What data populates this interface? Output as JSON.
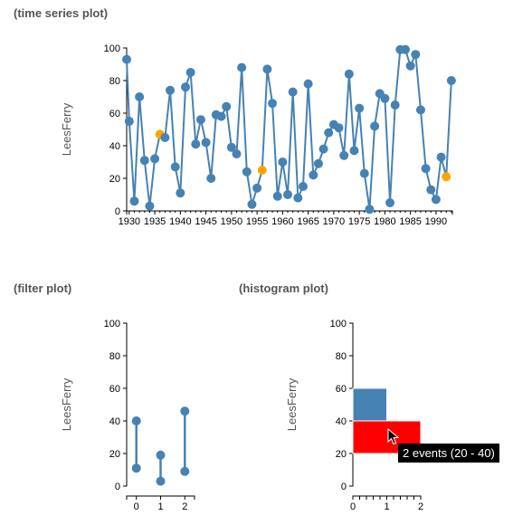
{
  "headings": {
    "time_series": "(time series plot)",
    "filter": "(filter plot)",
    "histogram": "(histogram plot)"
  },
  "tooltip": "2 events (20 - 40)",
  "colors": {
    "point": "#4682b4",
    "highlight": "#ffa500",
    "selected": "#ff0000"
  },
  "chart_data": [
    {
      "type": "line",
      "ylabel": "LeesFerry",
      "xlabel": "",
      "xlim": [
        1929.5,
        1993.2
      ],
      "ylim": [
        0,
        100
      ],
      "x_ticks": [
        1930,
        1935,
        1940,
        1945,
        1950,
        1955,
        1960,
        1965,
        1970,
        1975,
        1980,
        1985,
        1990
      ],
      "y_ticks": [
        0,
        20,
        40,
        60,
        80,
        100
      ],
      "x": [
        1929.5,
        1930,
        1931,
        1932,
        1933,
        1934,
        1935,
        1936,
        1937,
        1938,
        1939,
        1940,
        1941,
        1942,
        1943,
        1944,
        1945,
        1946,
        1947,
        1948,
        1949,
        1950,
        1951,
        1952,
        1953,
        1954,
        1955,
        1956,
        1957,
        1958,
        1959,
        1960,
        1961,
        1962,
        1963,
        1964,
        1965,
        1966,
        1967,
        1968,
        1969,
        1970,
        1971,
        1972,
        1973,
        1974,
        1975,
        1976,
        1977,
        1978,
        1979,
        1980,
        1981,
        1982,
        1983,
        1984,
        1985,
        1986,
        1987,
        1988,
        1989,
        1990,
        1991,
        1992,
        1993
      ],
      "y": [
        93,
        55,
        6,
        70,
        31,
        3,
        32,
        47,
        45,
        74,
        27,
        11,
        76,
        85,
        41,
        56,
        42,
        20,
        59,
        58,
        64,
        39,
        35,
        88,
        24,
        4,
        14,
        25,
        87,
        66,
        9,
        30,
        10,
        73,
        8,
        15,
        78,
        22,
        29,
        38,
        48,
        53,
        51,
        34,
        84,
        37,
        63,
        23,
        1,
        52,
        72,
        69,
        5,
        65,
        99,
        99,
        89,
        96,
        62,
        26,
        13,
        7,
        33,
        21,
        80
      ],
      "highlighted_x": [
        1936,
        1956,
        1992
      ]
    },
    {
      "type": "range",
      "ylabel": "LeesFerry",
      "xlabel": "",
      "xlim": [
        -0.4,
        2.4
      ],
      "ylim": [
        0,
        100
      ],
      "x_ticks": [
        0,
        1,
        2
      ],
      "y_ticks": [
        0,
        20,
        40,
        60,
        80,
        100
      ],
      "ranges": [
        {
          "x": 0,
          "low": 11,
          "high": 40
        },
        {
          "x": 1,
          "low": 3,
          "high": 19
        },
        {
          "x": 2,
          "low": 9,
          "high": 46
        }
      ]
    },
    {
      "type": "bar",
      "orientation": "horizontal",
      "ylabel": "LeesFerry",
      "xlabel": "",
      "xlim": [
        0,
        2
      ],
      "ylim": [
        0,
        100
      ],
      "x_ticks": [
        0,
        1,
        2
      ],
      "y_ticks": [
        0,
        20,
        40,
        60,
        80,
        100
      ],
      "bins": [
        {
          "low": 20,
          "high": 40,
          "count": 2,
          "selected": true
        },
        {
          "low": 40,
          "high": 60,
          "count": 1,
          "selected": false
        }
      ]
    }
  ]
}
